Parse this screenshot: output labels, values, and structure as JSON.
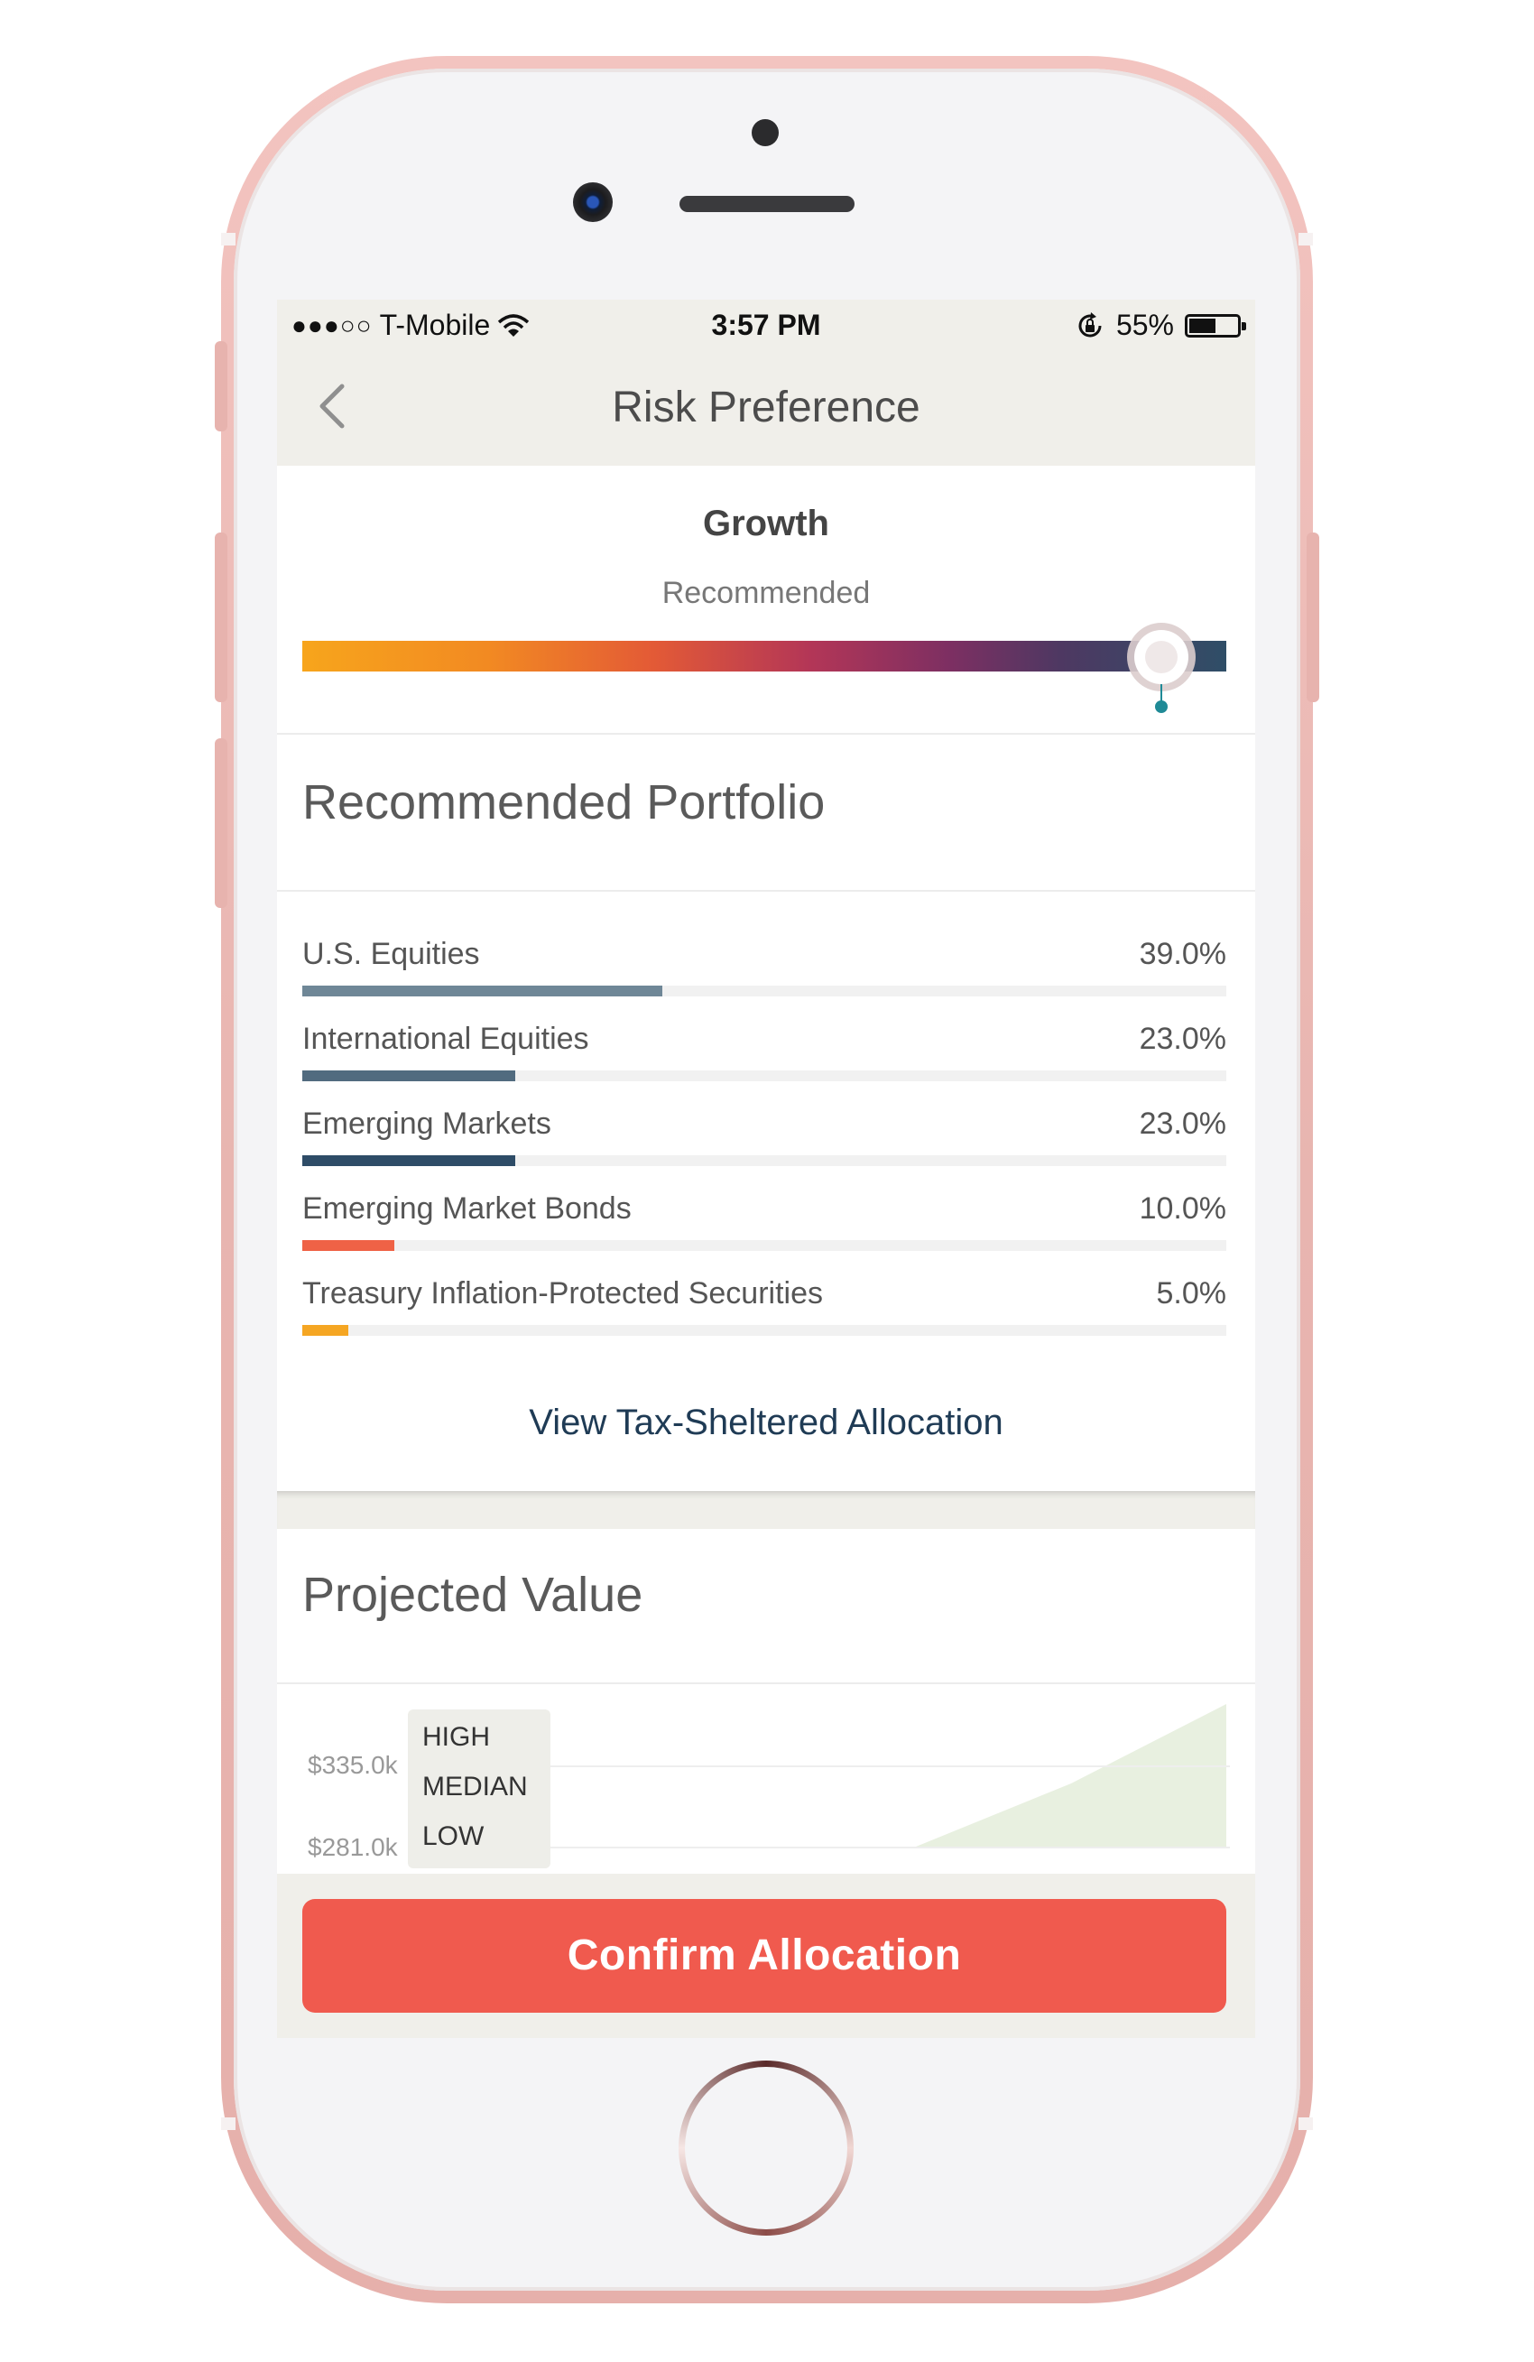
{
  "status_bar": {
    "signal": "●●●○○",
    "carrier": "T-Mobile",
    "time": "3:57 PM",
    "battery_pct": "55%",
    "battery_level": 0.55
  },
  "nav": {
    "title": "Risk Preference"
  },
  "risk": {
    "profile": "Growth",
    "recommended_label": "Recommended",
    "level": 0.93
  },
  "portfolio": {
    "title": "Recommended Portfolio",
    "items": [
      {
        "name": "U.S. Equities",
        "pct": "39.0%",
        "value": 39.0,
        "color": "#6f8797"
      },
      {
        "name": "International Equities",
        "pct": "23.0%",
        "value": 23.0,
        "color": "#516b7f"
      },
      {
        "name": "Emerging Markets",
        "pct": "23.0%",
        "value": 23.0,
        "color": "#2e4c67"
      },
      {
        "name": "Emerging Market Bonds",
        "pct": "10.0%",
        "value": 10.0,
        "color": "#ef6246"
      },
      {
        "name": "Treasury Inflation-Protected Securities",
        "pct": "5.0%",
        "value": 5.0,
        "color": "#f5a623"
      }
    ],
    "tax_link": "View Tax-Sheltered Allocation"
  },
  "projected": {
    "title": "Projected Value",
    "y_ticks": [
      "$335.0k",
      "$281.0k"
    ],
    "legend": [
      "HIGH",
      "MEDIAN",
      "LOW"
    ],
    "area_color": "#e8f0e0"
  },
  "confirm_label": "Confirm Allocation"
}
